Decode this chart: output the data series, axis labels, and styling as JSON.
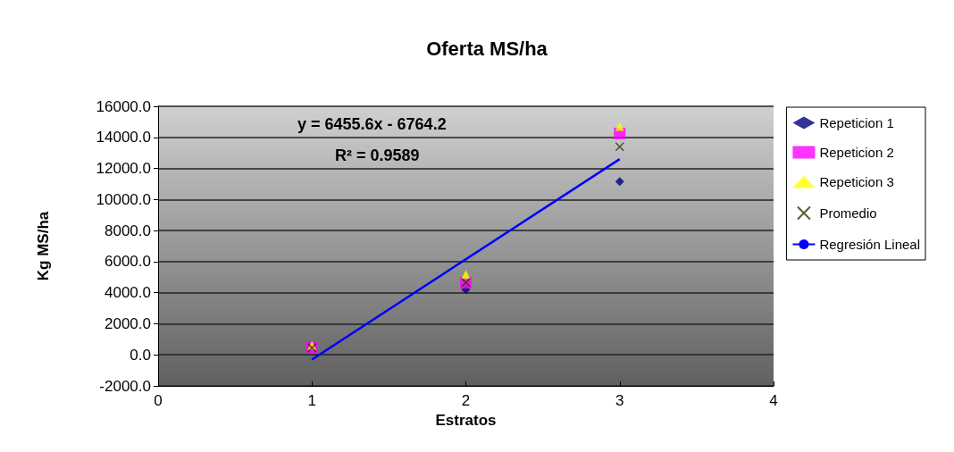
{
  "chart_data": {
    "type": "scatter",
    "title": "Oferta MS/ha",
    "xlabel": "Estratos",
    "ylabel": "Kg MS/ha",
    "xlim": [
      0,
      4
    ],
    "xticks": [
      0,
      1,
      2,
      3,
      4
    ],
    "ylim": [
      -2000,
      16000
    ],
    "yticks": [
      {
        "value": -2000,
        "label": "-2000.0"
      },
      {
        "value": 0,
        "label": "0.0"
      },
      {
        "value": 2000,
        "label": "2000.0"
      },
      {
        "value": 4000,
        "label": "4000.0"
      },
      {
        "value": 6000,
        "label": "6000.0"
      },
      {
        "value": 8000,
        "label": "8000.0"
      },
      {
        "value": 10000,
        "label": "10000.0"
      },
      {
        "value": 12000,
        "label": "12000.0"
      },
      {
        "value": 14000,
        "label": "14000.0"
      },
      {
        "value": 16000,
        "label": "16000.0"
      }
    ],
    "grid": "y",
    "legend": "right",
    "annotations": [
      "y = 6455.6x - 6764.2",
      "R² = 0.9589"
    ],
    "x": [
      1,
      2,
      3
    ],
    "series": [
      {
        "name": "Repeticion 1",
        "color": "#000080",
        "marker": "diamond",
        "values": [
          null,
          4200,
          11150
        ]
      },
      {
        "name": "Repeticion 2",
        "color": "#ff00ff",
        "marker": "square",
        "values": [
          500,
          4650,
          14250
        ]
      },
      {
        "name": "Repeticion 3",
        "color": "#ffff00",
        "marker": "triangle",
        "values": [
          600,
          5170,
          14700
        ]
      },
      {
        "name": "Promedio",
        "color": "#333300",
        "marker": "cross",
        "values": [
          450,
          4650,
          13400
        ]
      },
      {
        "name": "Regresión Lineal",
        "type": "line",
        "color": "#0000ff",
        "marker": "none",
        "line_style": "solid",
        "x": [
          1,
          3
        ],
        "values": [
          -300,
          12600
        ]
      }
    ]
  }
}
